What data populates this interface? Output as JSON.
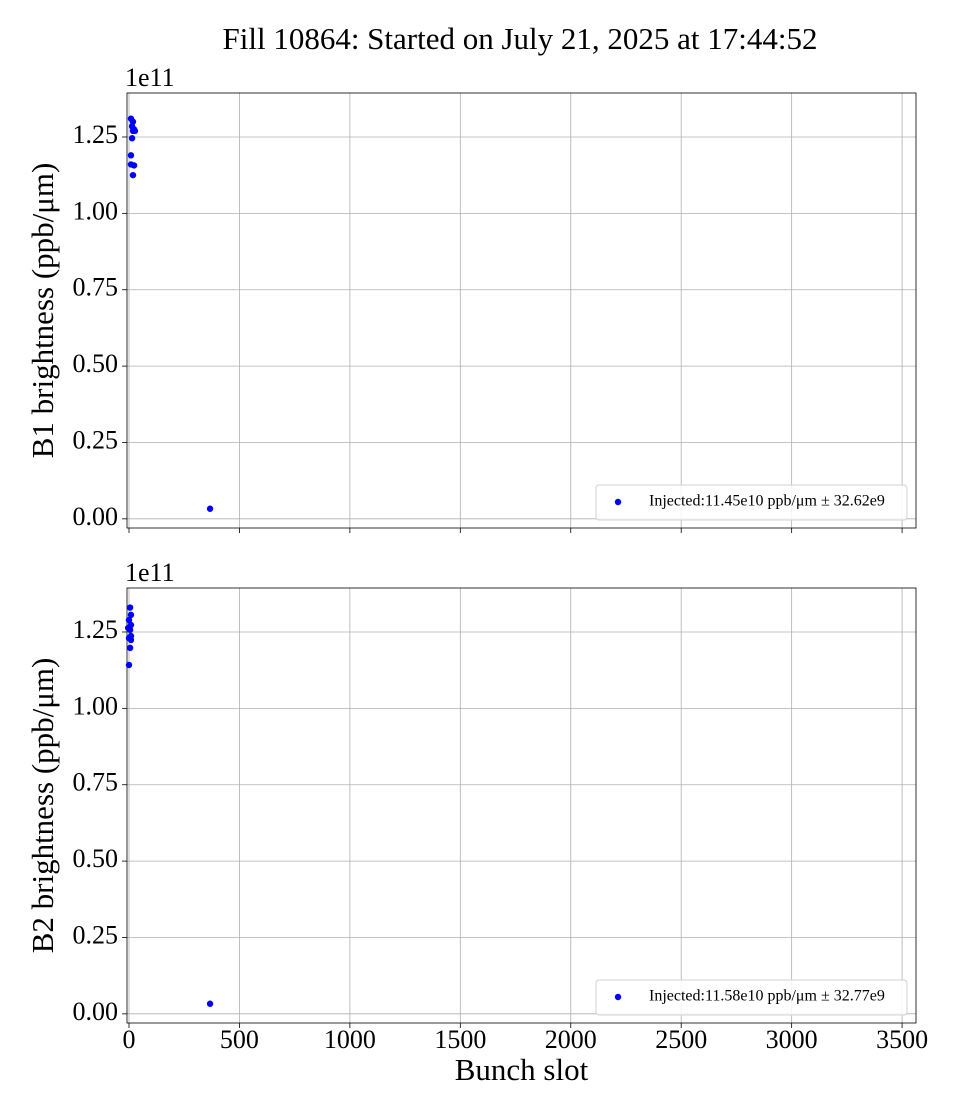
{
  "title": "Fill 10864: Started on July 21, 2025 at 17:44:52",
  "chart_data": [
    {
      "type": "scatter",
      "ylabel": "B1 brightness (ppb/μm)",
      "offset_label": "1e11",
      "xlim": [
        -9,
        3563
      ],
      "xticks": [
        0,
        500,
        1000,
        1500,
        2000,
        2500,
        3000,
        3500
      ],
      "xtick_labels": false,
      "ylim": [
        -0.03,
        1.394
      ],
      "yticks": [
        {
          "value": 0,
          "label": "0.00"
        },
        {
          "value": 0.25,
          "label": "0.25"
        },
        {
          "value": 0.5,
          "label": "0.50"
        },
        {
          "value": 0.75,
          "label": "0.75"
        },
        {
          "value": 1,
          "label": "1.00"
        },
        {
          "value": 1.25,
          "label": "1.25"
        }
      ],
      "grid": true,
      "legend": "lower right",
      "series": [
        {
          "name": "Injected:11.45e10 ppb/μm ± 32.62e9",
          "color": "#0000ff",
          "x": [
            9,
            18,
            14,
            23,
            18,
            27,
            14,
            9,
            9,
            23,
            18,
            367
          ],
          "values": [
            1.31,
            1.3,
            1.285,
            1.275,
            1.27,
            1.27,
            1.246,
            1.19,
            1.16,
            1.157,
            1.125,
            0.033
          ]
        }
      ]
    },
    {
      "type": "scatter",
      "ylabel": "B2 brightness (ppb/μm)",
      "xlabel": "Bunch slot",
      "offset_label": "1e11",
      "xlim": [
        -9,
        3563
      ],
      "xticks": [
        0,
        500,
        1000,
        1500,
        2000,
        2500,
        3000,
        3500
      ],
      "xtick_labels": true,
      "ylim": [
        -0.03,
        1.394
      ],
      "yticks": [
        {
          "value": 0,
          "label": "0.00"
        },
        {
          "value": 0.25,
          "label": "0.25"
        },
        {
          "value": 0.5,
          "label": "0.50"
        },
        {
          "value": 0.75,
          "label": "0.75"
        },
        {
          "value": 1,
          "label": "1.00"
        },
        {
          "value": 1.25,
          "label": "1.25"
        }
      ],
      "grid": true,
      "legend": "lower right",
      "series": [
        {
          "name": "Injected:11.58e10 ppb/μm ± 32.77e9",
          "color": "#0000ff",
          "x": [
            5,
            9,
            0,
            9,
            -4,
            5,
            9,
            0,
            9,
            5,
            0,
            367
          ],
          "values": [
            1.33,
            1.306,
            1.289,
            1.273,
            1.263,
            1.257,
            1.237,
            1.23,
            1.224,
            1.198,
            1.142,
            0.033
          ]
        }
      ]
    }
  ]
}
